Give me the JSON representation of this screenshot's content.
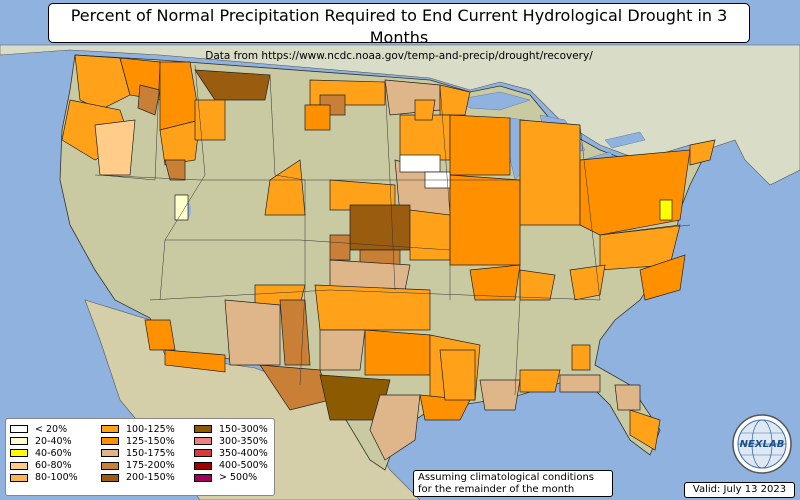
{
  "title": "Percent of Normal Precipitation Required to End Current Hydrological Drought in 3 Months",
  "subtitle": "Data from https://www.ncdc.noaa.gov/temp-and-precip/drought/recovery/",
  "legend": {
    "items": [
      {
        "label": "< 20%",
        "color": "#ffffff"
      },
      {
        "label": "20-40%",
        "color": "#ffffcc"
      },
      {
        "label": "40-60%",
        "color": "#ffff00"
      },
      {
        "label": "60-80%",
        "color": "#ffcc8a"
      },
      {
        "label": "80-100%",
        "color": "#ffb454"
      },
      {
        "label": "100-125%",
        "color": "#ffa21a"
      },
      {
        "label": "125-150%",
        "color": "#ff9000"
      },
      {
        "label": "150-175%",
        "color": "#dfb68a"
      },
      {
        "label": "175-200%",
        "color": "#c98036"
      },
      {
        "label": "200-150%",
        "color": "#9a5d10"
      },
      {
        "label": "150-300%",
        "color": "#8c5a00"
      },
      {
        "label": "300-350%",
        "color": "#f08080"
      },
      {
        "label": "350-400%",
        "color": "#d93a3a"
      },
      {
        "label": "400-500%",
        "color": "#a00000"
      },
      {
        "label": "> 500%",
        "color": "#a0005a"
      }
    ]
  },
  "note": {
    "line1": "Assuming climatological conditions",
    "line2": "for the remainder of the month"
  },
  "valid": "Valid: July 13 2023",
  "logo": {
    "text": "NEXLAB",
    "icon": "globe-icon"
  },
  "colors": {
    "ocean": "#8fb3de",
    "land": "#c9c9a2",
    "canada": "#d9dcc6",
    "mexico": "#d4cfa8",
    "lakes": "#8fb3de"
  }
}
